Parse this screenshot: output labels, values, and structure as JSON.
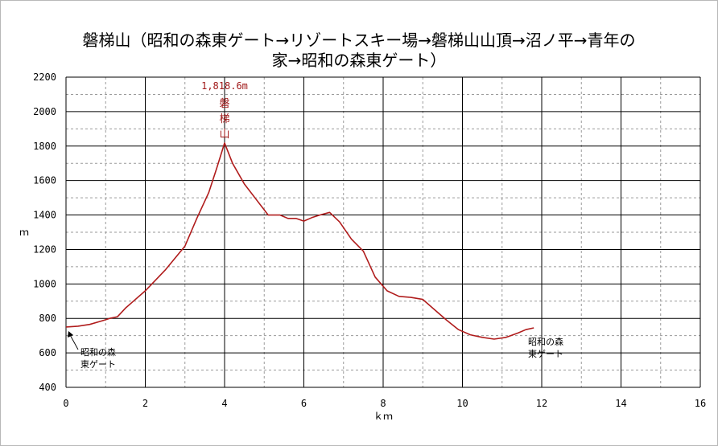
{
  "chart_data": {
    "type": "line",
    "title_lines": [
      "磐梯山（昭和の森東ゲート→リゾートスキー場→磐梯山山頂→沼ノ平→青年の",
      "家→昭和の森東ゲート）"
    ],
    "xlabel": "ｋｍ",
    "ylabel": "ｍ",
    "xlim": [
      0,
      16
    ],
    "ylim": [
      400,
      2200
    ],
    "x_ticks": [
      "0",
      "2",
      "4",
      "6",
      "8",
      "10",
      "12",
      "14",
      "16"
    ],
    "y_ticks": [
      "400",
      "600",
      "800",
      "1000",
      "1200",
      "1400",
      "1600",
      "1800",
      "2000",
      "2200"
    ],
    "grid": true,
    "line_color": "#b01c1c",
    "series": [
      {
        "x": [
          0,
          0.3,
          0.6,
          0.9,
          1.1,
          1.3,
          1.5,
          1.7,
          2.0,
          2.5,
          3.0,
          3.3,
          3.6,
          3.8,
          4.0,
          4.2,
          4.5,
          4.8,
          5.1,
          5.4,
          5.6,
          5.8,
          6.0,
          6.2,
          6.4,
          6.65,
          6.9,
          7.2,
          7.5,
          7.8,
          8.1,
          8.4,
          8.7,
          9.0,
          9.3,
          9.6,
          9.9,
          10.2,
          10.5,
          10.8,
          11.1,
          11.4,
          11.6,
          11.8
        ],
        "y": [
          750,
          755,
          765,
          785,
          800,
          810,
          860,
          900,
          960,
          1080,
          1220,
          1380,
          1530,
          1670,
          1818,
          1700,
          1580,
          1490,
          1400,
          1400,
          1380,
          1380,
          1365,
          1385,
          1400,
          1415,
          1360,
          1260,
          1190,
          1040,
          960,
          928,
          922,
          910,
          850,
          790,
          735,
          705,
          690,
          680,
          690,
          715,
          735,
          745
        ]
      }
    ],
    "annotations": {
      "peak_elevation": "1,818.6m",
      "peak_name": "磐梯山",
      "start_label": [
        "昭和の森",
        "東ゲート"
      ],
      "end_label": [
        "昭和の森",
        "東ゲート"
      ]
    }
  }
}
